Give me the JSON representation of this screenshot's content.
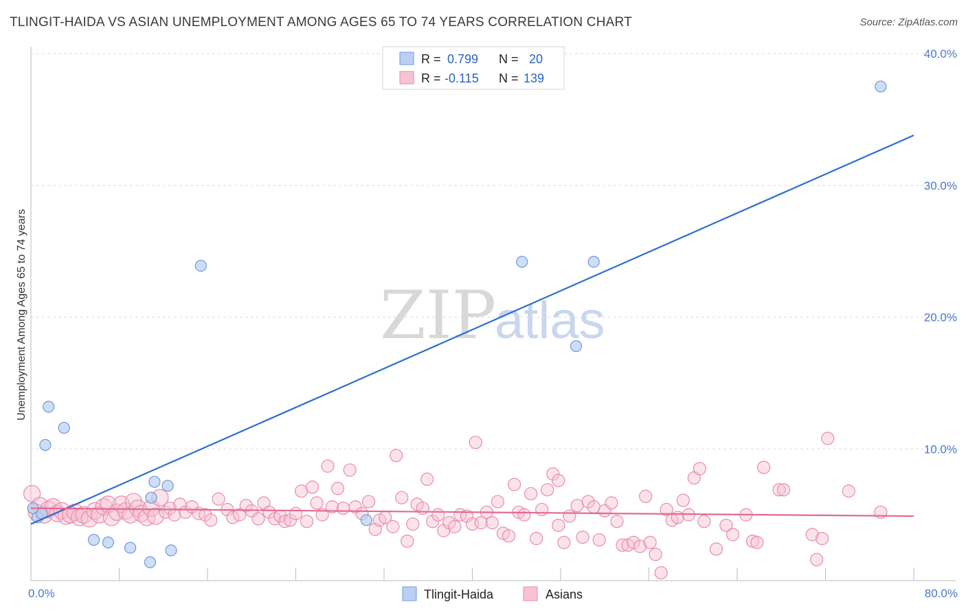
{
  "title": "TLINGIT-HAIDA VS ASIAN UNEMPLOYMENT AMONG AGES 65 TO 74 YEARS CORRELATION CHART",
  "source": "Source: ZipAtlas.com",
  "watermark": {
    "zip": "ZIP",
    "atlas": "atlas"
  },
  "colors": {
    "tlingit_fill": "#b9d0f3",
    "tlingit_stroke": "#6e98dc",
    "tlingit_line": "#2a6dd0",
    "asian_fill": "#f7c2d4",
    "asian_stroke": "#ea8aab",
    "asian_line": "#e3698f",
    "grid": "#dddddd",
    "axis_text": "#4a77c8"
  },
  "legend": {
    "rows": [
      {
        "r_label": "R = ",
        "r_value": "0.799",
        "n_label": "N = ",
        "n_value": "20"
      },
      {
        "r_label": "R = ",
        "r_value": "-0.115",
        "n_label": "N = ",
        "n_value": "139"
      }
    ]
  },
  "chart_data": {
    "type": "scatter",
    "title": "TLINGIT-HAIDA VS ASIAN UNEMPLOYMENT AMONG AGES 65 TO 74 YEARS CORRELATION CHART",
    "xlabel": "",
    "ylabel": "Unemployment Among Ages 65 to 74 years",
    "xlim": [
      0,
      80
    ],
    "ylim": [
      0,
      40
    ],
    "x_tick_labels": [
      "0.0%",
      "80.0%"
    ],
    "y_ticks": [
      10,
      20,
      30,
      40
    ],
    "y_tick_labels": [
      "10.0%",
      "20.0%",
      "30.0%",
      "40.0%"
    ],
    "grid": true,
    "legend_position": "top-center",
    "series": [
      {
        "name": "Tlingit-Haida",
        "r": 0.799,
        "n": 20,
        "trend": {
          "x": [
            0,
            80
          ],
          "y": [
            4.3,
            33.8
          ]
        },
        "points": [
          [
            0.2,
            5.5
          ],
          [
            0.6,
            4.8
          ],
          [
            1.0,
            5.1
          ],
          [
            1.6,
            13.2
          ],
          [
            1.3,
            10.3
          ],
          [
            3.0,
            11.6
          ],
          [
            5.7,
            3.1
          ],
          [
            7.0,
            2.9
          ],
          [
            9.0,
            2.5
          ],
          [
            10.8,
            1.4
          ],
          [
            11.2,
            7.5
          ],
          [
            12.4,
            7.2
          ],
          [
            10.9,
            6.3
          ],
          [
            12.7,
            2.3
          ],
          [
            15.4,
            23.9
          ],
          [
            30.4,
            4.6
          ],
          [
            44.5,
            24.2
          ],
          [
            51.0,
            24.2
          ],
          [
            49.4,
            17.8
          ],
          [
            77.0,
            37.5
          ]
        ]
      },
      {
        "name": "Asians",
        "r": -0.115,
        "n": 139,
        "trend": {
          "x": [
            0,
            80
          ],
          "y": [
            5.5,
            4.9
          ]
        },
        "points": [
          [
            0.1,
            6.6
          ],
          [
            0.5,
            5.2
          ],
          [
            0.8,
            5.7
          ],
          [
            1.2,
            5.0
          ],
          [
            1.6,
            5.4
          ],
          [
            2.0,
            5.6
          ],
          [
            2.4,
            5.1
          ],
          [
            2.8,
            5.3
          ],
          [
            3.2,
            4.9
          ],
          [
            3.6,
            5.0
          ],
          [
            4.0,
            5.2
          ],
          [
            4.4,
            4.8
          ],
          [
            4.8,
            5.0
          ],
          [
            5.3,
            4.7
          ],
          [
            5.8,
            5.3
          ],
          [
            6.2,
            5.0
          ],
          [
            6.6,
            5.6
          ],
          [
            7.0,
            5.8
          ],
          [
            7.3,
            4.8
          ],
          [
            7.8,
            5.2
          ],
          [
            8.2,
            5.8
          ],
          [
            8.6,
            5.3
          ],
          [
            9.0,
            5.0
          ],
          [
            9.3,
            6.0
          ],
          [
            9.7,
            5.5
          ],
          [
            10.0,
            5.1
          ],
          [
            10.5,
            4.8
          ],
          [
            10.9,
            5.5
          ],
          [
            11.3,
            4.9
          ],
          [
            11.7,
            6.3
          ],
          [
            12.2,
            5.2
          ],
          [
            12.6,
            5.5
          ],
          [
            13.0,
            5.0
          ],
          [
            13.5,
            5.8
          ],
          [
            14.0,
            5.2
          ],
          [
            14.6,
            5.6
          ],
          [
            15.2,
            5.1
          ],
          [
            15.8,
            5.0
          ],
          [
            16.3,
            4.6
          ],
          [
            17.0,
            6.2
          ],
          [
            17.8,
            5.4
          ],
          [
            18.3,
            4.8
          ],
          [
            18.9,
            5.0
          ],
          [
            19.5,
            5.7
          ],
          [
            20.0,
            5.3
          ],
          [
            20.6,
            4.7
          ],
          [
            21.1,
            5.9
          ],
          [
            21.6,
            5.2
          ],
          [
            22.1,
            4.7
          ],
          [
            22.6,
            4.9
          ],
          [
            23.0,
            4.5
          ],
          [
            23.5,
            4.6
          ],
          [
            24.0,
            5.1
          ],
          [
            24.5,
            6.8
          ],
          [
            25.0,
            4.5
          ],
          [
            25.5,
            7.1
          ],
          [
            25.9,
            5.9
          ],
          [
            26.4,
            5.0
          ],
          [
            26.9,
            8.7
          ],
          [
            27.3,
            5.6
          ],
          [
            27.8,
            7.0
          ],
          [
            28.3,
            5.5
          ],
          [
            28.9,
            8.4
          ],
          [
            29.4,
            5.6
          ],
          [
            30.0,
            5.1
          ],
          [
            30.6,
            6.0
          ],
          [
            31.2,
            3.9
          ],
          [
            31.6,
            4.6
          ],
          [
            32.1,
            4.8
          ],
          [
            32.8,
            4.1
          ],
          [
            33.1,
            9.5
          ],
          [
            33.6,
            6.3
          ],
          [
            34.1,
            3.0
          ],
          [
            34.6,
            4.3
          ],
          [
            35.0,
            5.8
          ],
          [
            35.5,
            5.5
          ],
          [
            35.9,
            7.7
          ],
          [
            36.4,
            4.5
          ],
          [
            36.9,
            5.0
          ],
          [
            37.4,
            3.8
          ],
          [
            37.9,
            4.4
          ],
          [
            38.4,
            4.1
          ],
          [
            38.9,
            5.0
          ],
          [
            39.5,
            4.9
          ],
          [
            40.0,
            4.3
          ],
          [
            40.3,
            10.5
          ],
          [
            40.8,
            4.4
          ],
          [
            41.3,
            5.2
          ],
          [
            41.8,
            4.4
          ],
          [
            42.3,
            6.0
          ],
          [
            42.8,
            3.6
          ],
          [
            43.3,
            3.4
          ],
          [
            43.8,
            7.3
          ],
          [
            44.2,
            5.2
          ],
          [
            44.7,
            5.0
          ],
          [
            45.3,
            6.6
          ],
          [
            45.8,
            3.2
          ],
          [
            46.3,
            5.4
          ],
          [
            46.8,
            6.9
          ],
          [
            47.3,
            8.1
          ],
          [
            47.8,
            7.6
          ],
          [
            48.3,
            2.9
          ],
          [
            48.8,
            4.9
          ],
          [
            49.5,
            5.7
          ],
          [
            50.0,
            3.3
          ],
          [
            50.5,
            6.0
          ],
          [
            51.0,
            5.6
          ],
          [
            51.5,
            3.1
          ],
          [
            52.0,
            5.3
          ],
          [
            52.6,
            5.9
          ],
          [
            53.1,
            4.5
          ],
          [
            53.6,
            2.7
          ],
          [
            54.1,
            2.7
          ],
          [
            54.6,
            2.9
          ],
          [
            55.2,
            2.6
          ],
          [
            55.7,
            6.4
          ],
          [
            56.1,
            2.9
          ],
          [
            56.6,
            2.0
          ],
          [
            57.1,
            0.6
          ],
          [
            57.6,
            5.4
          ],
          [
            58.1,
            4.6
          ],
          [
            58.6,
            4.8
          ],
          [
            59.1,
            6.1
          ],
          [
            59.6,
            5.0
          ],
          [
            60.1,
            7.8
          ],
          [
            60.6,
            8.5
          ],
          [
            61.0,
            4.5
          ],
          [
            62.1,
            2.4
          ],
          [
            63.0,
            4.2
          ],
          [
            63.6,
            3.5
          ],
          [
            64.8,
            5.0
          ],
          [
            65.4,
            3.0
          ],
          [
            65.8,
            2.9
          ],
          [
            66.4,
            8.6
          ],
          [
            67.8,
            6.9
          ],
          [
            68.2,
            6.9
          ],
          [
            70.8,
            3.5
          ],
          [
            71.7,
            3.2
          ],
          [
            71.2,
            1.6
          ],
          [
            72.2,
            10.8
          ],
          [
            74.1,
            6.8
          ],
          [
            77.0,
            5.2
          ],
          [
            47.8,
            4.2
          ]
        ]
      }
    ]
  },
  "bottom_legend": [
    {
      "label": "Tlingit-Haida"
    },
    {
      "label": "Asians"
    }
  ]
}
